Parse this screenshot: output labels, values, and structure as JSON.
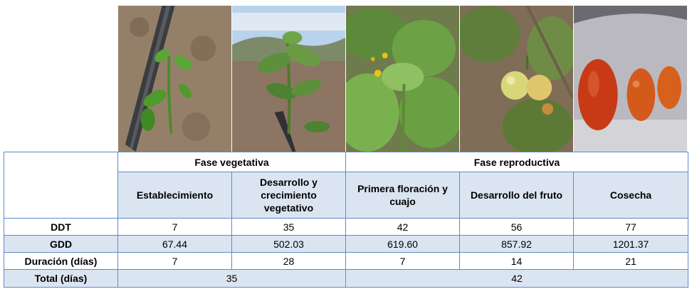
{
  "photos": [
    {
      "icon": "seedling-drip-photo"
    },
    {
      "icon": "young-tomato-plant-photo"
    },
    {
      "icon": "tomato-flowering-photo"
    },
    {
      "icon": "green-tomato-fruit-photo"
    },
    {
      "icon": "ripe-tomatoes-harvest-photo"
    }
  ],
  "table": {
    "phases": [
      "Fase vegetativa",
      "Fase reproductiva"
    ],
    "stages": [
      "Establecimiento",
      "Desarrollo y crecimiento vegetativo",
      "Primera floración y cuajo",
      "Desarrollo del fruto",
      "Cosecha"
    ],
    "rows": [
      {
        "label": "DDT",
        "values": [
          "7",
          "35",
          "42",
          "56",
          "77"
        ]
      },
      {
        "label": "GDD",
        "values": [
          "67.44",
          "502.03",
          "619.60",
          "857.92",
          "1201.37"
        ]
      },
      {
        "label": "Duración (días)",
        "values": [
          "7",
          "28",
          "7",
          "14",
          "21"
        ]
      }
    ],
    "total": {
      "label": "Total (días)",
      "vegetative": "35",
      "reproductive": "42"
    }
  },
  "colors": {
    "border": "#5b8bc9",
    "shade": "#dbe5f1"
  }
}
